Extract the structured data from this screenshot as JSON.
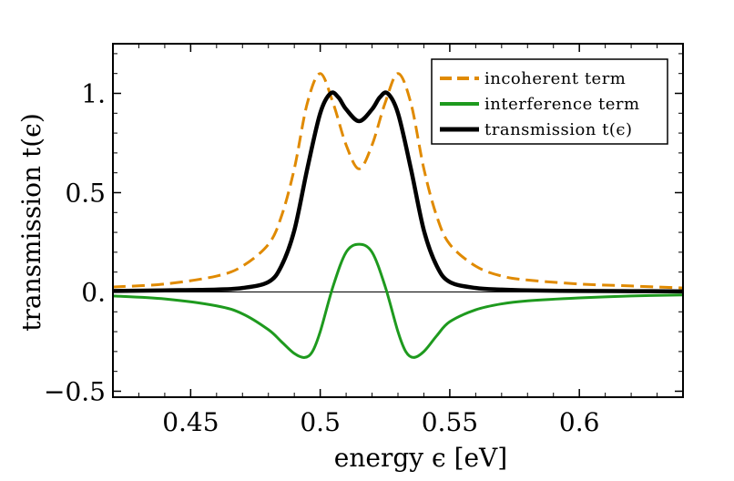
{
  "chart_data": {
    "type": "line",
    "xlabel": "energy ϵ [eV]",
    "ylabel": "transmission t(ϵ)",
    "xlim": [
      0.42,
      0.64
    ],
    "ylim": [
      -0.53,
      1.25
    ],
    "x_ticks": [
      0.45,
      0.5,
      0.55,
      0.6
    ],
    "x_tick_labels": [
      "0.45",
      "0.5",
      "0.55",
      "0.6"
    ],
    "y_ticks": [
      -0.5,
      0,
      0.5,
      1
    ],
    "y_tick_labels": [
      "−0.5",
      "0.",
      "0.5",
      "1."
    ],
    "grid": false,
    "legend_position": "top-right",
    "zero_line": true,
    "series": [
      {
        "name": "incoherent term",
        "color": "#E08A00",
        "style": "dashed",
        "x": [
          0.42,
          0.44,
          0.46,
          0.47,
          0.48,
          0.485,
          0.49,
          0.495,
          0.5,
          0.505,
          0.51,
          0.515,
          0.52,
          0.525,
          0.53,
          0.535,
          0.54,
          0.545,
          0.55,
          0.56,
          0.57,
          0.58,
          0.6,
          0.62,
          0.64
        ],
        "y": [
          0.025,
          0.04,
          0.08,
          0.13,
          0.24,
          0.38,
          0.62,
          0.95,
          1.1,
          0.95,
          0.74,
          0.62,
          0.74,
          0.95,
          1.1,
          0.95,
          0.62,
          0.38,
          0.24,
          0.13,
          0.08,
          0.06,
          0.04,
          0.03,
          0.02
        ]
      },
      {
        "name": "interference term",
        "color": "#1E9A1E",
        "style": "solid",
        "x": [
          0.42,
          0.44,
          0.46,
          0.47,
          0.48,
          0.485,
          0.49,
          0.494,
          0.497,
          0.5,
          0.505,
          0.51,
          0.515,
          0.52,
          0.525,
          0.53,
          0.533,
          0.536,
          0.54,
          0.545,
          0.55,
          0.56,
          0.57,
          0.58,
          0.6,
          0.62,
          0.64
        ],
        "y": [
          -0.02,
          -0.035,
          -0.07,
          -0.11,
          -0.19,
          -0.25,
          -0.31,
          -0.33,
          -0.3,
          -0.2,
          0.03,
          0.2,
          0.24,
          0.2,
          0.03,
          -0.2,
          -0.3,
          -0.33,
          -0.3,
          -0.22,
          -0.15,
          -0.09,
          -0.06,
          -0.045,
          -0.03,
          -0.02,
          -0.015
        ]
      },
      {
        "name": "transmission t(ϵ)",
        "color": "#000000",
        "style": "solid",
        "x": [
          0.42,
          0.44,
          0.46,
          0.47,
          0.48,
          0.485,
          0.49,
          0.495,
          0.5,
          0.504,
          0.507,
          0.51,
          0.515,
          0.52,
          0.523,
          0.526,
          0.53,
          0.535,
          0.54,
          0.545,
          0.55,
          0.56,
          0.57,
          0.58,
          0.6,
          0.62,
          0.64
        ],
        "y": [
          0.005,
          0.008,
          0.012,
          0.02,
          0.05,
          0.13,
          0.31,
          0.62,
          0.9,
          1.0,
          0.98,
          0.92,
          0.86,
          0.92,
          0.98,
          1.0,
          0.9,
          0.62,
          0.31,
          0.13,
          0.05,
          0.02,
          0.012,
          0.008,
          0.005,
          0.004,
          0.003
        ]
      }
    ]
  }
}
